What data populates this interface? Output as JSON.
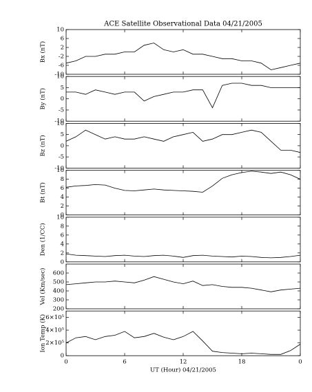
{
  "chart_data": [
    {
      "type": "line",
      "title": "ACE Satellite Observational Data   04/21/2005",
      "ylabel": "Bx (nT)",
      "color": "#000000",
      "x": [
        0,
        1,
        2,
        3,
        4,
        5,
        6,
        7,
        8,
        9,
        10,
        11,
        12,
        13,
        14,
        15,
        16,
        17,
        18,
        19,
        20,
        21,
        22,
        23,
        24
      ],
      "values": [
        -5,
        -4,
        -2,
        -2,
        -1,
        -1,
        0,
        0,
        3,
        4,
        1,
        0,
        1,
        -1,
        -1,
        -2,
        -3,
        -3,
        -4,
        -4,
        -5,
        -8,
        -7,
        -6,
        -5
      ],
      "ylim": [
        -10,
        10
      ],
      "yticks": [
        -10,
        -6,
        -2,
        2,
        6,
        10
      ],
      "xlim": [
        0,
        24
      ]
    },
    {
      "type": "line",
      "ylabel": "By (nT)",
      "color": "#000000",
      "x": [
        0,
        1,
        2,
        3,
        4,
        5,
        6,
        7,
        8,
        9,
        10,
        11,
        12,
        13,
        14,
        15,
        16,
        17,
        18,
        19,
        20,
        21,
        22,
        23,
        24
      ],
      "values": [
        3,
        3,
        2,
        4,
        3,
        2,
        3,
        3,
        -1,
        1,
        2,
        3,
        3,
        4,
        4,
        -4,
        6,
        7,
        7,
        6,
        6,
        5,
        5,
        5,
        5
      ],
      "ylim": [
        -10,
        10
      ],
      "yticks": [
        -10,
        -5,
        0,
        5,
        10
      ],
      "xlim": [
        0,
        24
      ]
    },
    {
      "type": "line",
      "ylabel": "Bz (nT)",
      "color": "#000000",
      "x": [
        0,
        1,
        2,
        3,
        4,
        5,
        6,
        7,
        8,
        9,
        10,
        11,
        12,
        13,
        14,
        15,
        16,
        17,
        18,
        19,
        20,
        21,
        22,
        23,
        24
      ],
      "values": [
        2,
        4,
        7,
        5,
        3,
        4,
        3,
        3,
        4,
        3,
        2,
        4,
        5,
        6,
        2,
        3,
        5,
        5,
        6,
        7,
        6,
        2,
        -2,
        -2,
        -3
      ],
      "ylim": [
        -10,
        10
      ],
      "yticks": [
        -10,
        -5,
        0,
        5,
        10
      ],
      "xlim": [
        0,
        24
      ]
    },
    {
      "type": "line",
      "ylabel": "Bt (nT)",
      "color": "#000000",
      "x": [
        0,
        1,
        2,
        3,
        4,
        5,
        6,
        7,
        8,
        9,
        10,
        11,
        12,
        13,
        14,
        15,
        16,
        17,
        18,
        19,
        20,
        21,
        22,
        23,
        24
      ],
      "values": [
        6.2,
        6.5,
        6.6,
        6.8,
        6.7,
        6.0,
        5.5,
        5.4,
        5.6,
        5.8,
        5.6,
        5.5,
        5.4,
        5.3,
        5.1,
        6.5,
        8.2,
        9.0,
        9.5,
        9.8,
        9.6,
        9.3,
        9.6,
        9.0,
        8.0
      ],
      "ylim": [
        0,
        10
      ],
      "yticks": [
        0,
        2,
        4,
        6,
        8,
        10
      ],
      "xlim": [
        0,
        24
      ]
    },
    {
      "type": "line",
      "ylabel": "Den (1/CC)",
      "color": "#000000",
      "x": [
        0,
        1,
        2,
        3,
        4,
        5,
        6,
        7,
        8,
        9,
        10,
        11,
        12,
        13,
        14,
        15,
        16,
        17,
        18,
        19,
        20,
        21,
        22,
        23,
        24
      ],
      "values": [
        1.8,
        1.5,
        1.4,
        1.3,
        1.2,
        1.4,
        1.5,
        1.3,
        1.2,
        1.4,
        1.5,
        1.3,
        1.0,
        1.4,
        1.5,
        1.3,
        1.2,
        1.1,
        1.3,
        1.2,
        1.0,
        0.9,
        1.0,
        1.2,
        1.5
      ],
      "ylim": [
        0,
        10
      ],
      "yticks": [
        0,
        2,
        4,
        6,
        8,
        10
      ],
      "xlim": [
        0,
        24
      ]
    },
    {
      "type": "line",
      "ylabel": "Vel (Km/sec)",
      "color": "#000000",
      "x": [
        0,
        1,
        2,
        3,
        4,
        5,
        6,
        7,
        8,
        9,
        10,
        11,
        12,
        13,
        14,
        15,
        16,
        17,
        18,
        19,
        20,
        21,
        22,
        23,
        24
      ],
      "values": [
        470,
        480,
        490,
        500,
        500,
        510,
        500,
        490,
        520,
        560,
        530,
        500,
        480,
        510,
        460,
        470,
        450,
        440,
        440,
        430,
        410,
        390,
        410,
        420,
        430
      ],
      "ylim": [
        200,
        700
      ],
      "yticks": [
        200,
        300,
        400,
        500,
        600
      ],
      "xlim": [
        0,
        24
      ]
    },
    {
      "type": "line",
      "ylabel": "Ion Temp (K)",
      "xlabel": "UT (Hour)  04/21/2005",
      "color": "#000000",
      "x": [
        0,
        1,
        2,
        3,
        4,
        5,
        6,
        7,
        8,
        9,
        10,
        11,
        12,
        13,
        14,
        15,
        16,
        17,
        18,
        19,
        20,
        21,
        22,
        23,
        24
      ],
      "values": [
        200000,
        280000,
        300000,
        250000,
        300000,
        320000,
        380000,
        280000,
        300000,
        350000,
        290000,
        250000,
        300000,
        380000,
        230000,
        70000,
        50000,
        40000,
        30000,
        40000,
        30000,
        20000,
        20000,
        80000,
        180000
      ],
      "ylim": [
        0,
        700000
      ],
      "yticks": [
        0,
        {
          "value": 200000,
          "label": "2×10⁵"
        },
        {
          "value": 400000,
          "label": "4×10⁵"
        },
        {
          "value": 600000,
          "label": "6×10⁵"
        }
      ],
      "xlim": [
        0,
        24
      ],
      "xticks": [
        0,
        6,
        12,
        18,
        {
          "value": 24,
          "label": "0"
        }
      ]
    }
  ]
}
